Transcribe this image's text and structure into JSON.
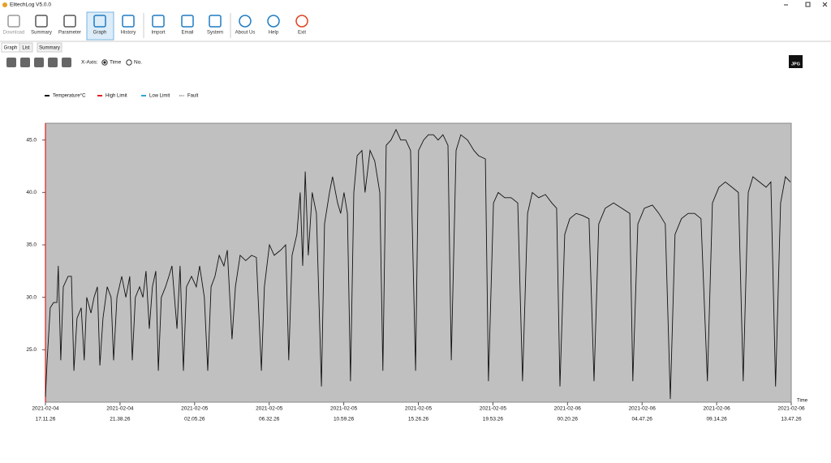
{
  "window": {
    "title": "ElitechLog V5.0.0"
  },
  "toolbar": {
    "buttons": [
      "Download",
      "Summary",
      "Parameter",
      "Graph",
      "History",
      "Import",
      "Email",
      "System",
      "About Us",
      "Help",
      "Exit"
    ]
  },
  "tabs": [
    "Graph",
    "List",
    "Summary"
  ],
  "controls": {
    "x_axis_label": "X-Axis:",
    "options": [
      "Time",
      "No."
    ],
    "export": "JPG"
  },
  "legend": [
    {
      "name": "High Limit",
      "color": "#e02020"
    },
    {
      "name": "Low Limit",
      "color": "#2aa6d8"
    },
    {
      "name": "Fault",
      "color": "#aaaaaa"
    }
  ],
  "chart_data": {
    "type": "line",
    "x_label": "Time",
    "xlim": [
      0,
      2670
    ],
    "ylim": [
      20,
      46.6
    ],
    "xticks": [
      {
        "value": 0,
        "label": [
          "2021-02-04",
          "17.11.26"
        ]
      },
      {
        "value": 267,
        "label": [
          "2021-02-04",
          "21.38.26"
        ]
      },
      {
        "value": 534,
        "label": [
          "2021-02-05",
          "02.05.26"
        ]
      },
      {
        "value": 801,
        "label": [
          "2021-02-05",
          "06.32.26"
        ]
      },
      {
        "value": 1068,
        "label": [
          "2021-02-05",
          "10.59.26"
        ]
      },
      {
        "value": 1335,
        "label": [
          "2021-02-05",
          "15.26.26"
        ]
      },
      {
        "value": 1602,
        "label": [
          "2021-02-05",
          "19.53.26"
        ]
      },
      {
        "value": 1869,
        "label": [
          "2021-02-06",
          "00.20.26"
        ]
      },
      {
        "value": 2136,
        "label": [
          "2021-02-06",
          "04.47.26"
        ]
      },
      {
        "value": 2403,
        "label": [
          "2021-02-06",
          "09.14.26"
        ]
      },
      {
        "value": 2670,
        "label": [
          "2021-02-06",
          "13.47.26"
        ]
      }
    ],
    "yticks": [
      {
        "value": 25,
        "label": "25.0"
      },
      {
        "value": 30,
        "label": "30.0"
      },
      {
        "value": 35,
        "label": "35.0"
      },
      {
        "value": 40,
        "label": "40.0"
      },
      {
        "value": 45,
        "label": "45.0"
      }
    ],
    "series": [
      {
        "name": "Temperature°C",
        "color": "#111111",
        "x": [
          0,
          6,
          17,
          29,
          41,
          46,
          55,
          64,
          81,
          93,
          102,
          113,
          128,
          139,
          148,
          163,
          174,
          186,
          195,
          206,
          221,
          235,
          244,
          256,
          273,
          288,
          302,
          311,
          322,
          337,
          349,
          360,
          372,
          383,
          395,
          404,
          415,
          430,
          442,
          453,
          471,
          482,
          494,
          505,
          523,
          540,
          552,
          569,
          581,
          593,
          607,
          622,
          639,
          651,
          668,
          680,
          697,
          717,
          738,
          755,
          773,
          784,
          802,
          819,
          842,
          860,
          871,
          883,
          900,
          912,
          921,
          930,
          941,
          955,
          970,
          988,
          999,
          1017,
          1028,
          1046,
          1057,
          1069,
          1081,
          1092,
          1104,
          1116,
          1133,
          1144,
          1162,
          1179,
          1197,
          1208,
          1220,
          1237,
          1255,
          1272,
          1290,
          1307,
          1325,
          1336,
          1354,
          1371,
          1389,
          1406,
          1423,
          1441,
          1453,
          1470,
          1487,
          1511,
          1534,
          1551,
          1575,
          1586,
          1604,
          1621,
          1644,
          1667,
          1691,
          1708,
          1726,
          1743,
          1766,
          1790,
          1813,
          1830,
          1842,
          1859,
          1877,
          1900,
          1923,
          1946,
          1964,
          1981,
          2004,
          2034,
          2063,
          2092,
          2103,
          2121,
          2144,
          2173,
          2196,
          2219,
          2237,
          2254,
          2277,
          2301,
          2324,
          2347,
          2370,
          2388,
          2411,
          2434,
          2458,
          2481,
          2498,
          2516,
          2533,
          2556,
          2580,
          2597,
          2614,
          2632,
          2649,
          2667
        ],
        "values": [
          20.5,
          24,
          29,
          29.5,
          29.5,
          33,
          24,
          31,
          32,
          32,
          23,
          28,
          29,
          24,
          30,
          28.5,
          30,
          31,
          23.5,
          28,
          31,
          30,
          24,
          30,
          32,
          30,
          32,
          24,
          30,
          31,
          30,
          32.5,
          27,
          31,
          32.5,
          23,
          30,
          31,
          32,
          33,
          27,
          33,
          23,
          31,
          32,
          31,
          33,
          30,
          23,
          31,
          32,
          34,
          33,
          34.5,
          26,
          31,
          34,
          33.5,
          34,
          33.8,
          23,
          31,
          35,
          34,
          34.5,
          35,
          24,
          34,
          36,
          40,
          33,
          42,
          34,
          40,
          38,
          21.5,
          37,
          40,
          41.5,
          39,
          38,
          40,
          38,
          22,
          40,
          43.5,
          44,
          40,
          44,
          43,
          40,
          23,
          44.5,
          45,
          46,
          45,
          45,
          44,
          23,
          44,
          45,
          45.5,
          45.5,
          45,
          45.5,
          44.5,
          24,
          44,
          45.5,
          45,
          44,
          43.5,
          43.2,
          22,
          39,
          40,
          39.5,
          39.5,
          39,
          22,
          38,
          40,
          39.5,
          39.8,
          39,
          38.5,
          21.5,
          36,
          37.5,
          38,
          37.8,
          37.5,
          22,
          37,
          38.5,
          39,
          38.5,
          38,
          22,
          37,
          38.5,
          38.8,
          38,
          37,
          20.3,
          36,
          37.5,
          38,
          38,
          37.5,
          22,
          39,
          40.5,
          41,
          40.5,
          40,
          22,
          40,
          41.5,
          41,
          40.5,
          41,
          21.5,
          39,
          41.5,
          41
        ]
      }
    ]
  }
}
